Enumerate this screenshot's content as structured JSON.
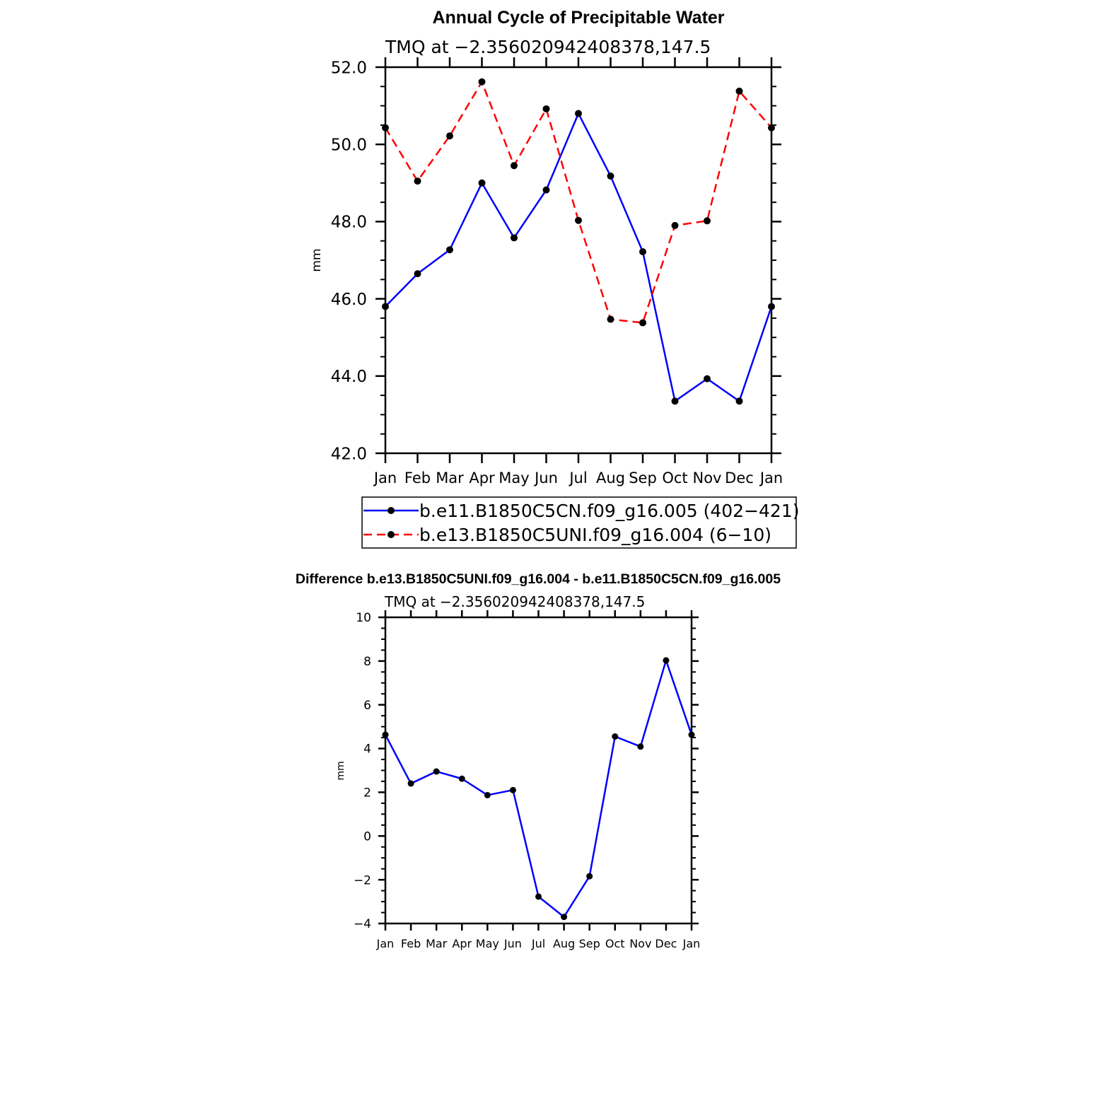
{
  "chart_data": [
    {
      "type": "line",
      "title": "Annual Cycle of Precipitable Water",
      "subtitle": "TMQ at −2.356020942408378,147.5",
      "xlabel": "",
      "ylabel": "mm",
      "categories": [
        "Jan",
        "Feb",
        "Mar",
        "Apr",
        "May",
        "Jun",
        "Jul",
        "Aug",
        "Sep",
        "Oct",
        "Nov",
        "Dec",
        "Jan"
      ],
      "ylim": [
        42,
        52
      ],
      "yticks": [
        "42.0",
        "44.0",
        "46.0",
        "48.0",
        "50.0",
        "52.0"
      ],
      "grid": false,
      "legend_position": "bottom",
      "series": [
        {
          "name": "b.e11.B1850C5CN.f09_g16.005 (402−421)",
          "color": "#0000ff",
          "dash": "solid",
          "values": [
            45.8,
            46.65,
            47.27,
            49.0,
            47.58,
            48.82,
            50.8,
            49.18,
            47.22,
            43.35,
            43.93,
            43.35,
            45.8
          ]
        },
        {
          "name": "b.e13.B1850C5UNI.f09_g16.004 (6−10)",
          "color": "#ff0000",
          "dash": "dashed",
          "values": [
            50.43,
            49.05,
            50.22,
            51.62,
            49.45,
            50.92,
            48.03,
            45.47,
            45.38,
            47.9,
            48.02,
            51.38,
            50.43
          ]
        }
      ]
    },
    {
      "type": "line",
      "title": "Difference b.e13.B1850C5UNI.f09_g16.004 - b.e11.B1850C5CN.f09_g16.005",
      "subtitle": "TMQ at −2.356020942408378,147.5",
      "xlabel": "",
      "ylabel": "mm",
      "categories": [
        "Jan",
        "Feb",
        "Mar",
        "Apr",
        "May",
        "Jun",
        "Jul",
        "Aug",
        "Sep",
        "Oct",
        "Nov",
        "Dec",
        "Jan"
      ],
      "ylim": [
        -4,
        10
      ],
      "yticks": [
        "−4",
        "−2",
        "0",
        "2",
        "4",
        "6",
        "8",
        "10"
      ],
      "grid": false,
      "series": [
        {
          "color": "#0000ff",
          "dash": "solid",
          "values": [
            4.63,
            2.4,
            2.95,
            2.62,
            1.87,
            2.1,
            -2.77,
            -3.7,
            -1.84,
            4.55,
            4.09,
            8.03,
            4.63
          ]
        }
      ]
    }
  ]
}
